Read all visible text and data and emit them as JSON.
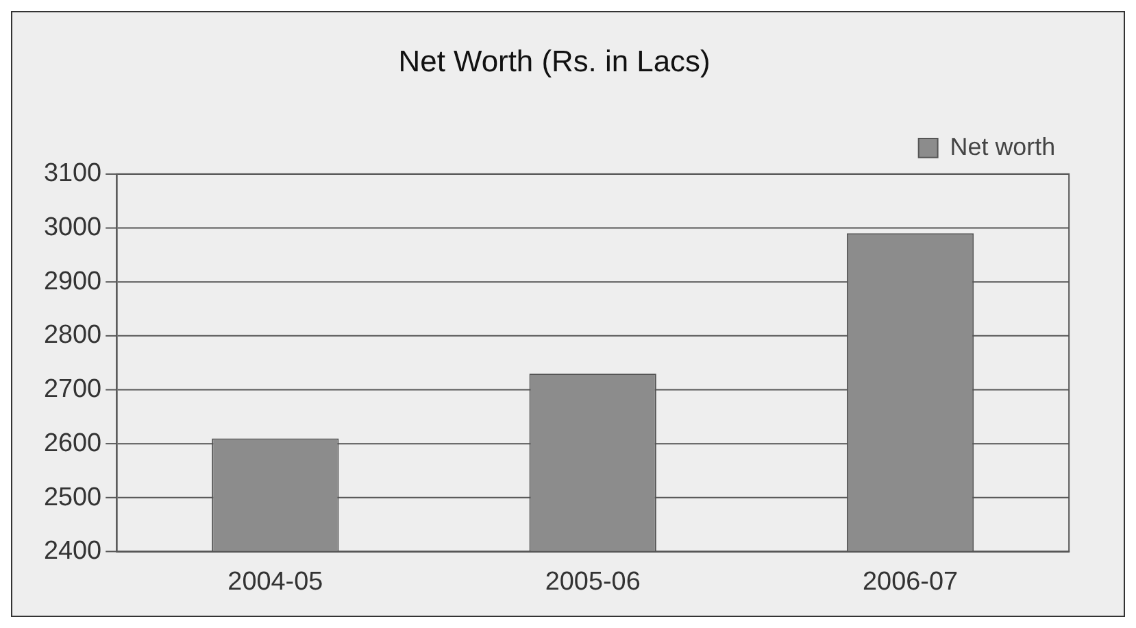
{
  "chart_data": {
    "type": "bar",
    "title": "Net Worth (Rs. in Lacs)",
    "categories": [
      "2004-05",
      "2005-06",
      "2006-07"
    ],
    "series": [
      {
        "name": "Net worth",
        "color": "#8c8c8c",
        "values": [
          2610,
          2730,
          2990
        ]
      }
    ],
    "ylim": [
      2400,
      3100
    ],
    "yticks": [
      2400,
      2500,
      2600,
      2700,
      2800,
      2900,
      3000,
      3100
    ],
    "grid": "y",
    "legend": "top right"
  }
}
